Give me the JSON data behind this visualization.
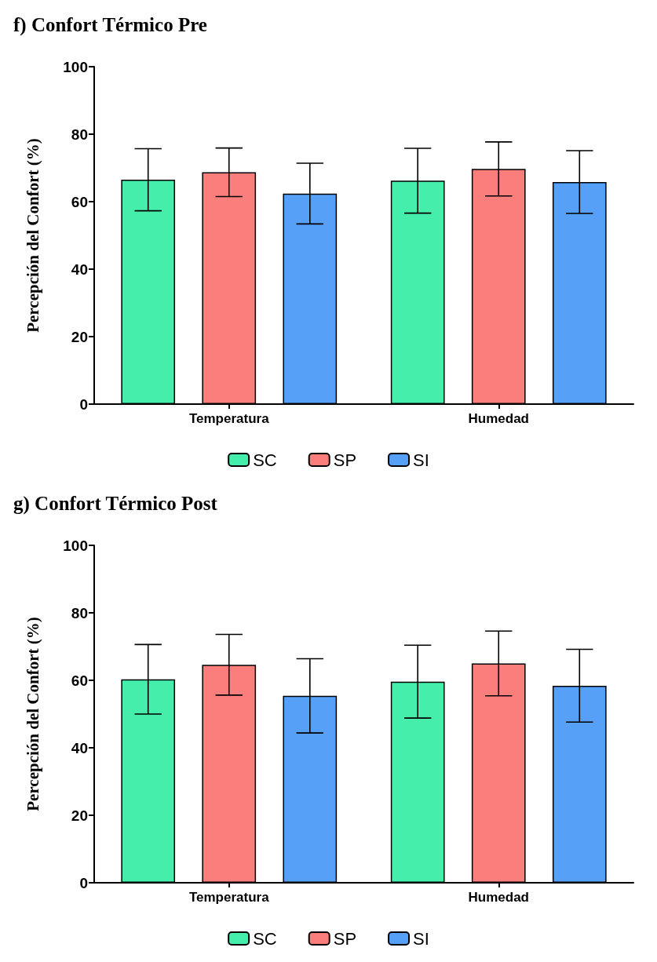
{
  "chart_data": [
    {
      "type": "bar",
      "title": "f) Confort Térmico Pre",
      "ylabel": "Percepción del Confort (%)",
      "categories": [
        "Temperatura",
        "Humedad"
      ],
      "series": [
        {
          "name": "SC",
          "color": "#46eeac",
          "values": [
            66.5,
            66.2
          ],
          "errors": [
            9.2,
            9.6
          ]
        },
        {
          "name": "SP",
          "color": "#fa7f7c",
          "values": [
            68.7,
            69.7
          ],
          "errors": [
            7.2,
            8
          ]
        },
        {
          "name": "SI",
          "color": "#57a0f8",
          "values": [
            62.4,
            65.8
          ],
          "errors": [
            9,
            9.3
          ]
        }
      ],
      "ylim": [
        0,
        100
      ],
      "yticks": [
        0,
        20,
        40,
        60,
        80,
        100
      ],
      "grid": false,
      "legend": "bottom"
    },
    {
      "type": "bar",
      "title": "g) Confort Térmico Post",
      "ylabel": "Percepción del Confort (%)",
      "categories": [
        "Temperatura",
        "Humedad"
      ],
      "series": [
        {
          "name": "SC",
          "color": "#46eeac",
          "values": [
            60.3,
            59.6
          ],
          "errors": [
            10.3,
            10.8
          ]
        },
        {
          "name": "SP",
          "color": "#fa7f7c",
          "values": [
            64.6,
            65
          ],
          "errors": [
            9,
            9.6
          ]
        },
        {
          "name": "SI",
          "color": "#57a0f8",
          "values": [
            55.4,
            58.4
          ],
          "errors": [
            11,
            10.8
          ]
        }
      ],
      "ylim": [
        0,
        100
      ],
      "yticks": [
        0,
        20,
        40,
        60,
        80,
        100
      ],
      "grid": false,
      "legend": "bottom"
    }
  ]
}
